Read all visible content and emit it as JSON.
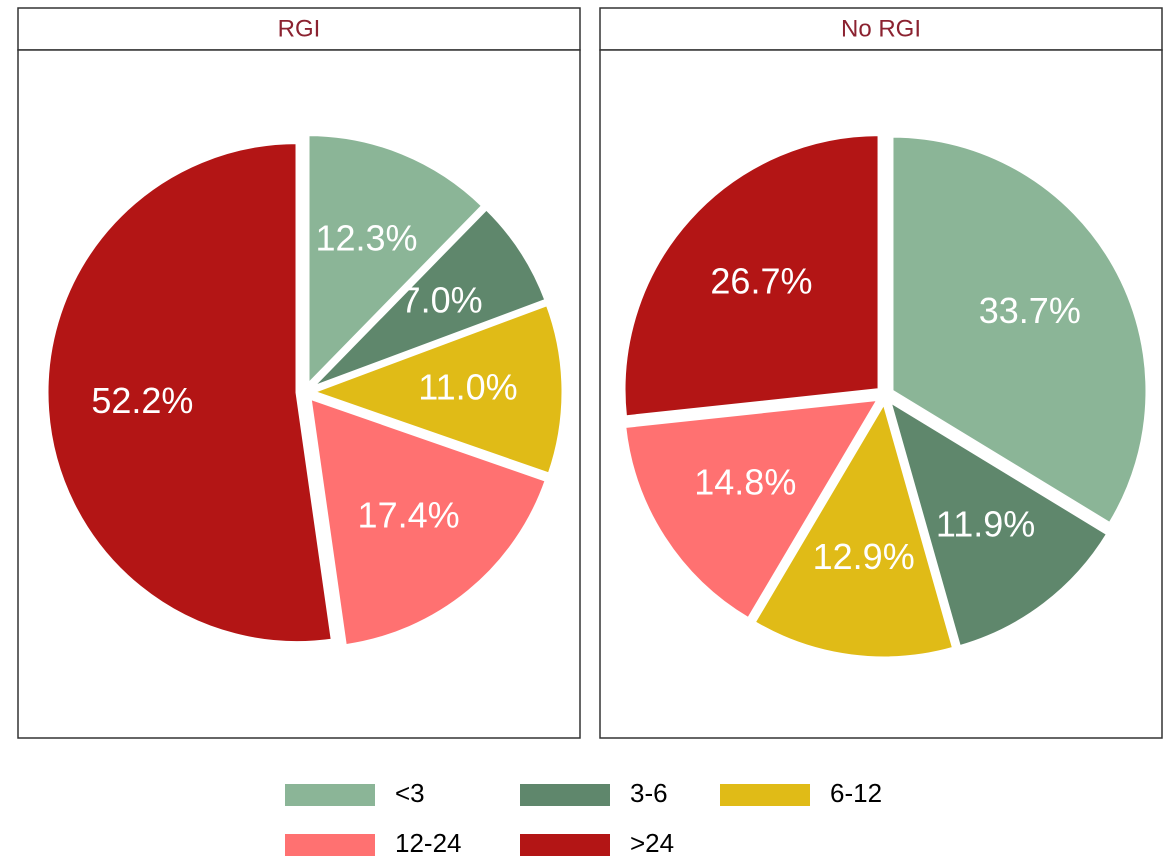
{
  "chart_data": [
    {
      "type": "pie",
      "title": "RGI",
      "categories": [
        "<3",
        "3-6",
        "6-12",
        "12-24",
        ">24"
      ],
      "values": [
        12.3,
        7.0,
        11.0,
        17.4,
        52.2
      ],
      "value_labels": [
        "12.3%",
        "7.0%",
        "11.0%",
        "17.4%",
        "52.2%"
      ],
      "colors": [
        "#8bb597",
        "#5f876c",
        "#e0bb17",
        "#ff7171",
        "#b31515"
      ]
    },
    {
      "type": "pie",
      "title": "No RGI",
      "categories": [
        "<3",
        "3-6",
        "6-12",
        "12-24",
        ">24"
      ],
      "values": [
        33.7,
        11.9,
        12.9,
        14.8,
        26.7
      ],
      "value_labels": [
        "33.7%",
        "11.9%",
        "12.9%",
        "14.8%",
        "26.7%"
      ],
      "colors": [
        "#8bb597",
        "#5f876c",
        "#e0bb17",
        "#ff7171",
        "#b31515"
      ]
    }
  ]
}
